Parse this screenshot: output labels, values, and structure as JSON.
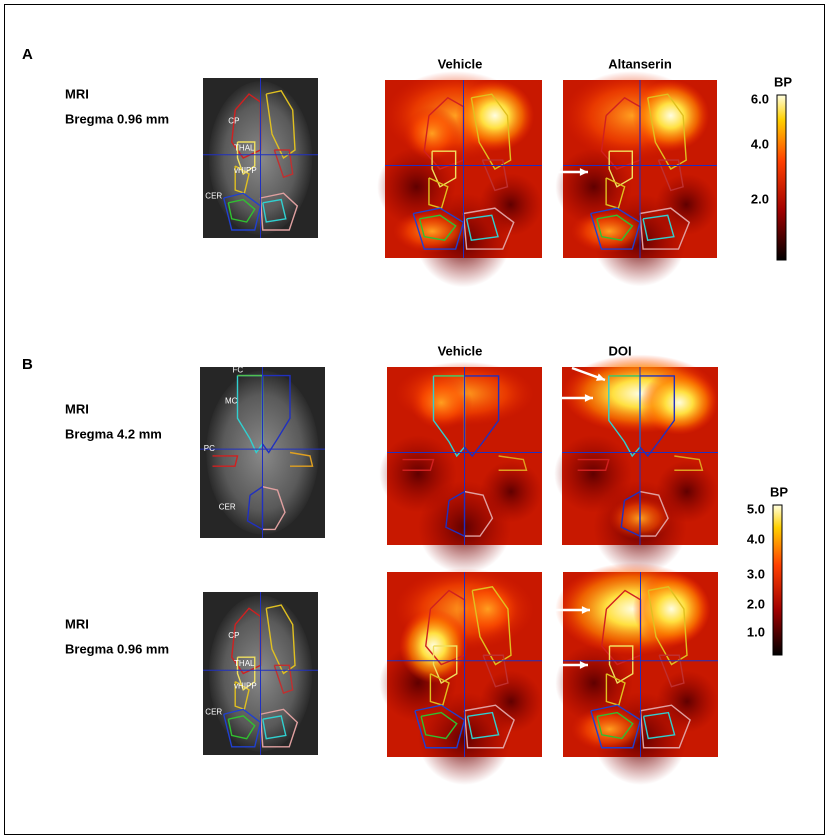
{
  "panel_a": {
    "label": "A",
    "mri": {
      "title": "MRI",
      "bregma": "Bregma 0.96 mm",
      "regions": [
        "CP",
        "THAL",
        "vHIPP",
        "CER"
      ]
    },
    "conditions": [
      "Vehicle",
      "Altanserin"
    ],
    "colorbar": {
      "title": "BP",
      "ticks": [
        "6.0",
        "4.0",
        "2.0"
      ]
    }
  },
  "panel_b": {
    "label": "B",
    "conditions": [
      "Vehicle",
      "DOI"
    ],
    "rows": [
      {
        "mri": {
          "title": "MRI",
          "bregma": "Bregma 4.2 mm",
          "regions": [
            "FC",
            "MC",
            "PC",
            "CER"
          ]
        }
      },
      {
        "mri": {
          "title": "MRI",
          "bregma": "Bregma 0.96 mm",
          "regions": [
            "CP",
            "THAL",
            "vHIPP",
            "CER"
          ]
        }
      }
    ],
    "colorbar": {
      "title": "BP",
      "ticks": [
        "5.0",
        "4.0",
        "3.0",
        "2.0",
        "1.0"
      ]
    }
  }
}
